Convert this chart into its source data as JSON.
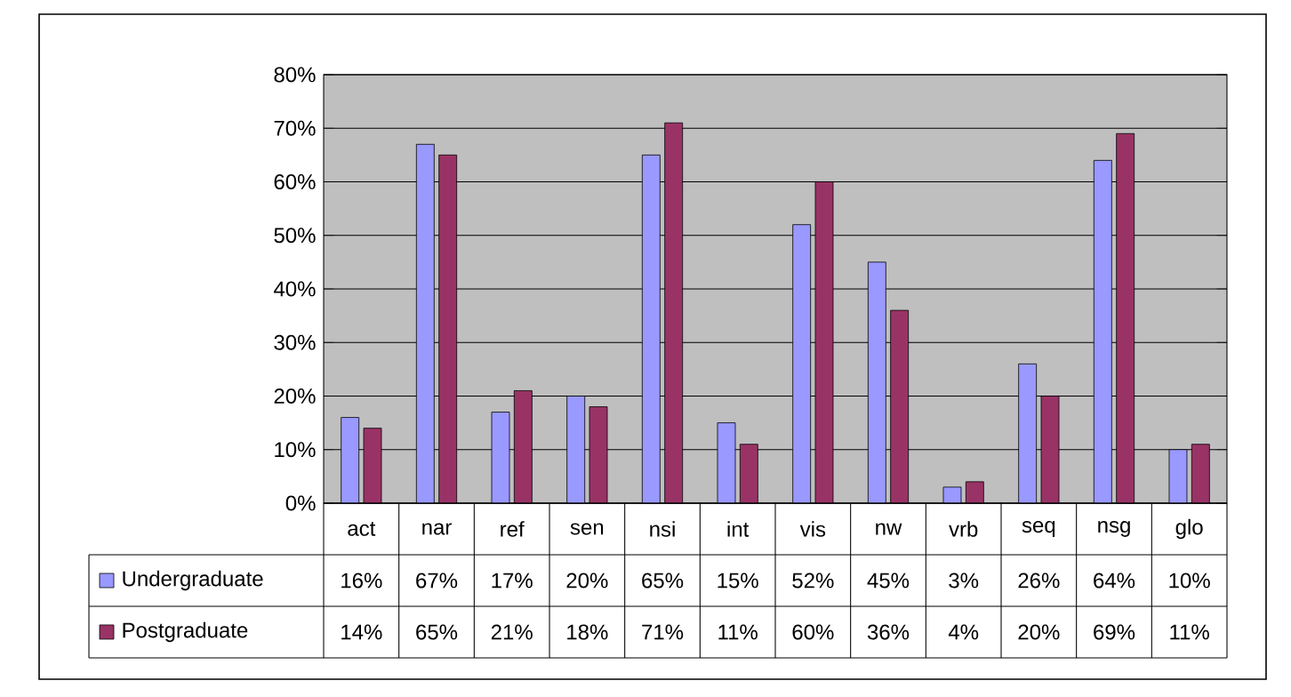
{
  "chart_data": {
    "type": "bar",
    "categories": [
      "act",
      "nar",
      "ref",
      "sen",
      "nsi",
      "int",
      "vis",
      "nw",
      "vrb",
      "seq",
      "nsg",
      "glo"
    ],
    "series": [
      {
        "name": "Undergraduate",
        "color": "#9999ff",
        "values": [
          16,
          67,
          17,
          20,
          65,
          15,
          52,
          45,
          3,
          26,
          64,
          10
        ],
        "value_labels": [
          "16%",
          "67%",
          "17%",
          "20%",
          "65%",
          "15%",
          "52%",
          "45%",
          "3%",
          "26%",
          "64%",
          "10%"
        ]
      },
      {
        "name": "Postgraduate",
        "color": "#993366",
        "values": [
          14,
          65,
          21,
          18,
          71,
          11,
          60,
          36,
          4,
          20,
          69,
          11
        ],
        "value_labels": [
          "14%",
          "65%",
          "21%",
          "18%",
          "71%",
          "11%",
          "60%",
          "36%",
          "4%",
          "20%",
          "69%",
          "11%"
        ]
      }
    ],
    "ylim": [
      0,
      80
    ],
    "yticks": [
      {
        "value": 0,
        "label": "0%"
      },
      {
        "value": 10,
        "label": "10%"
      },
      {
        "value": 20,
        "label": "20%"
      },
      {
        "value": 30,
        "label": "30%"
      },
      {
        "value": 40,
        "label": "40%"
      },
      {
        "value": 50,
        "label": "50%"
      },
      {
        "value": 60,
        "label": "60%"
      },
      {
        "value": 70,
        "label": "70%"
      },
      {
        "value": 80,
        "label": "80%"
      }
    ],
    "grid": "y",
    "legend": "bottom"
  }
}
